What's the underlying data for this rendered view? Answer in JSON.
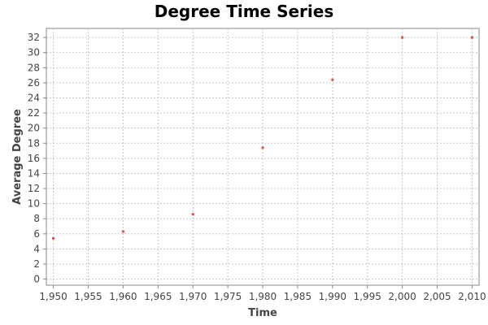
{
  "chart_data": {
    "type": "scatter",
    "title": "Degree Time Series",
    "xlabel": "Time",
    "ylabel": "Average Degree",
    "xlim": [
      1949,
      2011
    ],
    "ylim": [
      -0.8,
      33.2
    ],
    "x_ticks": [
      1950,
      1955,
      1960,
      1965,
      1970,
      1975,
      1980,
      1985,
      1990,
      1995,
      2000,
      2005,
      2010
    ],
    "x_tick_labels": [
      "1,950",
      "1,955",
      "1,960",
      "1,965",
      "1,970",
      "1,975",
      "1,980",
      "1,985",
      "1,990",
      "1,995",
      "2,000",
      "2,005",
      "2,010"
    ],
    "y_ticks": [
      0,
      2,
      4,
      6,
      8,
      10,
      12,
      14,
      16,
      18,
      20,
      22,
      24,
      26,
      28,
      30,
      32
    ],
    "grid": true,
    "legend": "none",
    "series": [
      {
        "color": "#e05050",
        "x": [
          1950,
          1960,
          1970,
          1980,
          1990,
          2000,
          2010
        ],
        "y": [
          5.4,
          6.3,
          8.6,
          17.4,
          26.4,
          32.0,
          32.0
        ]
      }
    ]
  }
}
